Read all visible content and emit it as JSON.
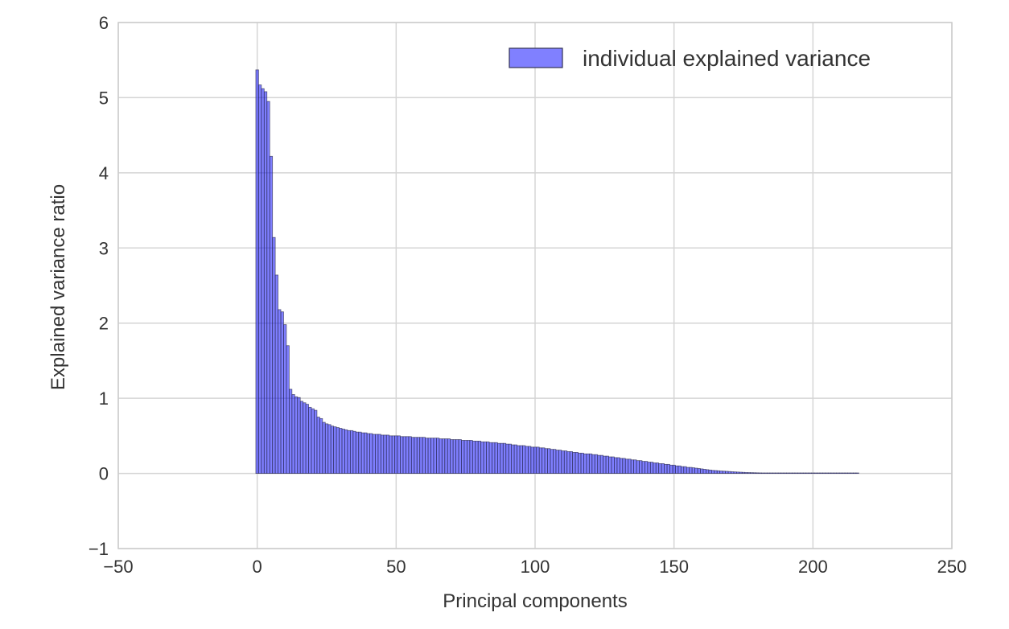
{
  "chart_data": {
    "type": "bar",
    "xlabel": "Principal components",
    "ylabel": "Explained variance ratio",
    "xlim": [
      -50,
      250
    ],
    "ylim": [
      -1,
      6
    ],
    "xticks": [
      "−50",
      "0",
      "50",
      "100",
      "150",
      "200",
      "250"
    ],
    "xtick_values": [
      -50,
      0,
      50,
      100,
      150,
      200,
      250
    ],
    "yticks": [
      "−1",
      "0",
      "1",
      "2",
      "3",
      "4",
      "5",
      "6"
    ],
    "ytick_values": [
      -1,
      0,
      1,
      2,
      3,
      4,
      5,
      6
    ],
    "grid": true,
    "legend_position": "top-right",
    "series": [
      {
        "name": "individual explained variance",
        "color": "#0000ff",
        "opacity": 0.5,
        "edge_color": "#333355",
        "x_start": 0,
        "values": [
          5.37,
          5.17,
          5.12,
          5.08,
          4.95,
          4.22,
          3.14,
          2.64,
          2.18,
          2.15,
          1.98,
          1.7,
          1.12,
          1.05,
          1.02,
          1.01,
          0.96,
          0.94,
          0.92,
          0.88,
          0.86,
          0.84,
          0.75,
          0.73,
          0.68,
          0.66,
          0.65,
          0.63,
          0.62,
          0.61,
          0.6,
          0.59,
          0.58,
          0.57,
          0.57,
          0.56,
          0.55,
          0.55,
          0.54,
          0.54,
          0.53,
          0.53,
          0.52,
          0.52,
          0.52,
          0.51,
          0.51,
          0.51,
          0.5,
          0.5,
          0.5,
          0.5,
          0.49,
          0.49,
          0.49,
          0.49,
          0.48,
          0.48,
          0.48,
          0.48,
          0.48,
          0.47,
          0.47,
          0.47,
          0.47,
          0.47,
          0.46,
          0.46,
          0.46,
          0.46,
          0.45,
          0.45,
          0.45,
          0.45,
          0.44,
          0.44,
          0.44,
          0.44,
          0.43,
          0.43,
          0.43,
          0.42,
          0.42,
          0.42,
          0.41,
          0.41,
          0.41,
          0.4,
          0.4,
          0.4,
          0.39,
          0.39,
          0.38,
          0.38,
          0.37,
          0.37,
          0.37,
          0.36,
          0.36,
          0.35,
          0.35,
          0.35,
          0.34,
          0.34,
          0.33,
          0.33,
          0.32,
          0.32,
          0.31,
          0.31,
          0.3,
          0.3,
          0.29,
          0.29,
          0.28,
          0.28,
          0.27,
          0.27,
          0.26,
          0.26,
          0.26,
          0.25,
          0.25,
          0.24,
          0.24,
          0.23,
          0.23,
          0.22,
          0.22,
          0.21,
          0.21,
          0.2,
          0.2,
          0.19,
          0.19,
          0.18,
          0.18,
          0.17,
          0.17,
          0.16,
          0.16,
          0.15,
          0.15,
          0.14,
          0.14,
          0.13,
          0.13,
          0.12,
          0.12,
          0.11,
          0.11,
          0.1,
          0.1,
          0.09,
          0.09,
          0.08,
          0.08,
          0.075,
          0.07,
          0.065,
          0.06,
          0.055,
          0.05,
          0.045,
          0.04,
          0.038,
          0.035,
          0.032,
          0.03,
          0.028,
          0.025,
          0.022,
          0.02,
          0.018,
          0.016,
          0.014,
          0.012,
          0.011,
          0.01,
          0.009,
          0.008,
          0.007,
          0.006,
          0.006,
          0.005,
          0.005,
          0.004,
          0.004,
          0.003,
          0.003,
          0.003,
          0.002,
          0.002,
          0.002,
          0.002,
          0.001,
          0.001,
          0.001,
          0.001,
          0.001,
          0.001,
          0.001,
          0.001,
          0.001,
          0.001,
          0.001,
          0.001,
          0.001,
          0.001,
          0.001,
          0.001,
          0.001,
          0.001,
          0.001,
          0.001,
          0.001,
          0.001
        ]
      }
    ]
  }
}
